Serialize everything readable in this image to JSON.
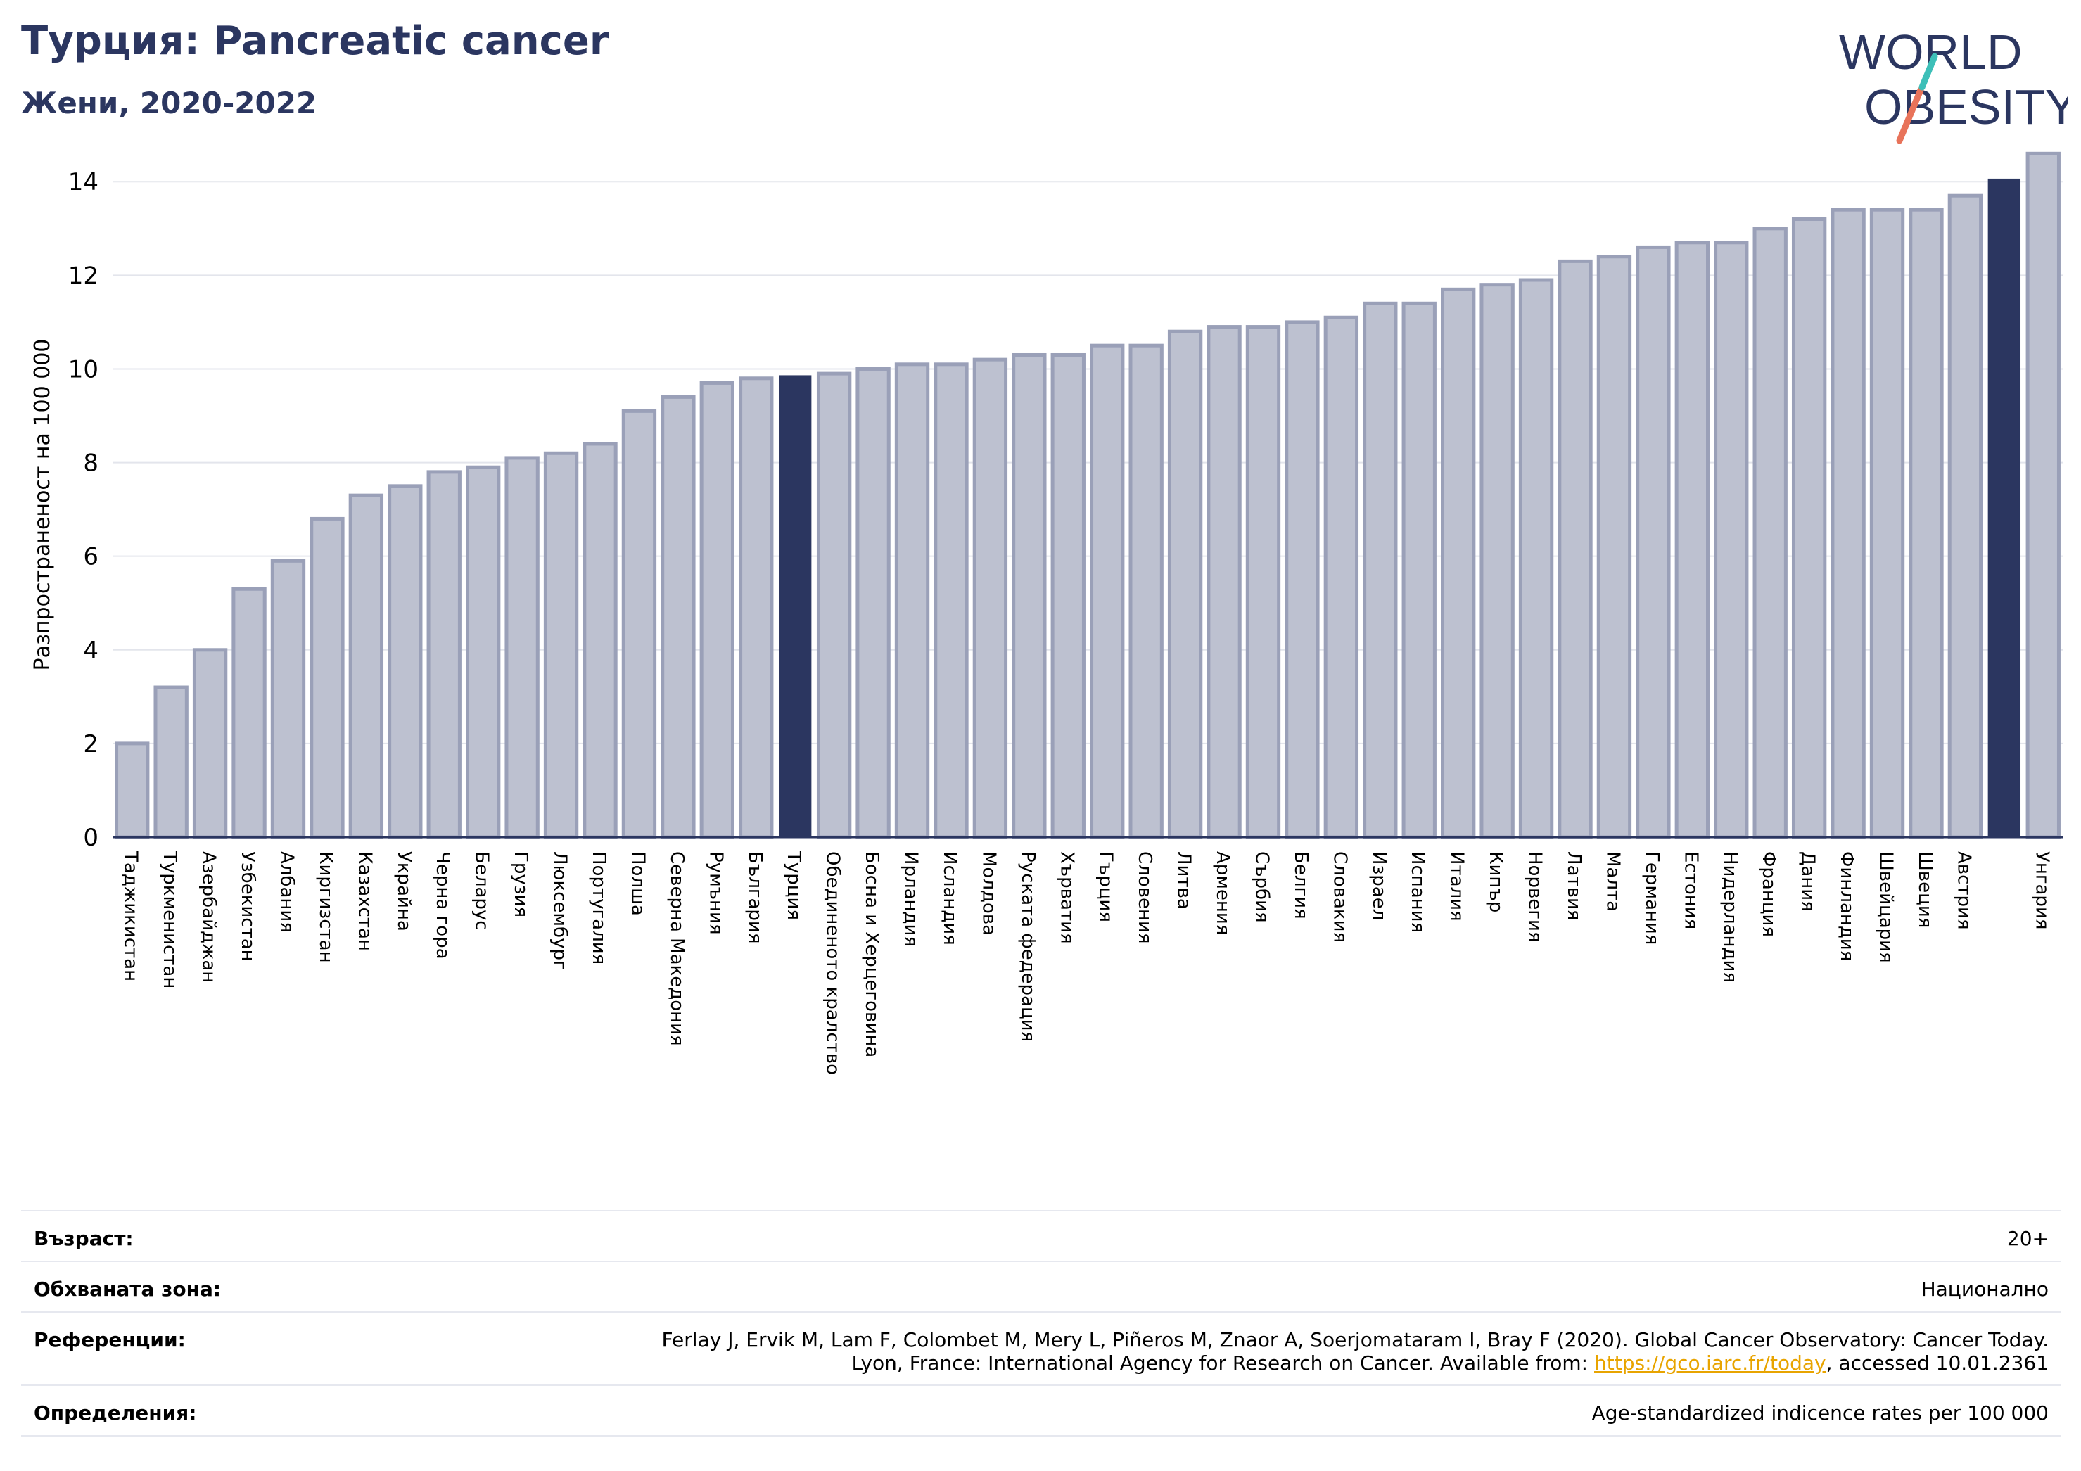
{
  "header": {
    "title": "Турция: Pancreatic cancer",
    "subtitle": "Жени, 2020-2022"
  },
  "logo": {
    "line1": "WORLD",
    "line2": "OBESITY"
  },
  "colors": {
    "bar": "#bdc1d0",
    "bar_edge": "#9aa0b8",
    "highlight": "#2b3660",
    "title": "#2b3660",
    "link": "#e8a400",
    "logo_teal": "#3dbfb8",
    "logo_orange": "#e8735a"
  },
  "chart_data": {
    "type": "bar",
    "ylabel": "Разпространеност  на 100 000",
    "ylim": [
      0,
      14.8
    ],
    "yticks": [
      0,
      2,
      4,
      6,
      8,
      10,
      12,
      14
    ],
    "grid": true,
    "highlighted": [
      "Турция",
      ""
    ],
    "categories": [
      "Таджикистан",
      "Туркменистан",
      "Азербайджан",
      "Узбекистан",
      "Албания",
      "Киргизстан",
      "Казахстан",
      "Украйна",
      "Черна гора",
      "Беларус",
      "Грузия",
      "Люксембург",
      "Португалия",
      "Полша",
      "Северна Македония",
      "Румъния",
      "България",
      "Турция",
      "Обединеното кралство",
      "Босна и Херцеговина",
      "Ирландия",
      "Исландия",
      "Молдова",
      "Руската федерация",
      "Хърватия",
      "Гърция",
      "Словения",
      "Литва",
      "Армения",
      "Сърбия",
      "Белгия",
      "Словакия",
      "Израел",
      "Испания",
      "Италия",
      "Кипър",
      "Норвегия",
      "Латвия",
      "Малта",
      "Германия",
      "Естония",
      "Нидерландия",
      "Франция",
      "Дания",
      "Финландия",
      "Швейцария",
      "Швеция",
      "Австрия",
      "",
      "Унгария"
    ],
    "values": [
      2.0,
      3.2,
      4.0,
      5.3,
      5.9,
      6.8,
      7.3,
      7.5,
      7.8,
      7.9,
      8.1,
      8.2,
      8.4,
      9.1,
      9.4,
      9.7,
      9.8,
      9.85,
      9.9,
      10.0,
      10.1,
      10.1,
      10.2,
      10.3,
      10.3,
      10.5,
      10.5,
      10.8,
      10.9,
      10.9,
      11.0,
      11.1,
      11.4,
      11.4,
      11.7,
      11.8,
      11.9,
      12.3,
      12.4,
      12.6,
      12.7,
      12.7,
      13.0,
      13.2,
      13.4,
      13.4,
      13.4,
      13.7,
      14.05,
      14.6
    ]
  },
  "meta": {
    "age_label": "Възраст:",
    "age_value": "20+",
    "area_label": "Обхваната зона:",
    "area_value": "Национално",
    "refs_label": "Референции:",
    "refs_line1": "Ferlay J, Ervik M, Lam F, Colombet M, Mery L, Piñeros M, Znaor A, Soerjomataram I, Bray F (2020). Global Cancer Observatory: Cancer Today.",
    "refs_line2_prefix": "Lyon, France: International Agency for Research on Cancer. Available from: ",
    "refs_link": "https://gco.iarc.fr/today",
    "refs_line2_suffix": ", accessed 10.01.2361",
    "defs_label": "Определения:",
    "defs_value": "Age-standardized indicence rates per 100 000"
  }
}
